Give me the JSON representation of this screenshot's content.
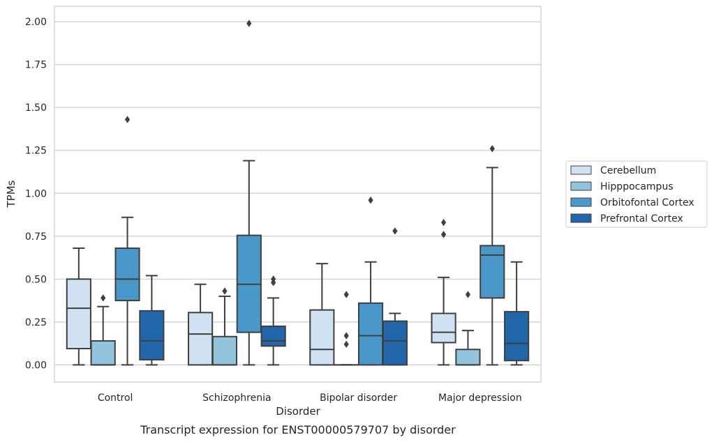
{
  "caption": "Transcript expression for ENST00000579707 by disorder",
  "chart_data": {
    "type": "box",
    "title": "",
    "xlabel": "Disorder",
    "ylabel": "TPMs",
    "ylim": [
      -0.1,
      2.09
    ],
    "yticks": [
      0.0,
      0.25,
      0.5,
      0.75,
      1.0,
      1.25,
      1.5,
      1.75,
      2.0
    ],
    "ytick_labels": [
      "0.00",
      "0.25",
      "0.50",
      "0.75",
      "1.00",
      "1.25",
      "1.50",
      "1.75",
      "2.00"
    ],
    "grid": "horizontal",
    "legend_position": "right",
    "categories": [
      "Control",
      "Schizophrenia",
      "Bipolar disorder",
      "Major depression"
    ],
    "series": [
      {
        "name": "Cerebellum",
        "color": "#cfe1f2",
        "boxes": [
          {
            "whislo": 0.0,
            "q1": 0.095,
            "med": 0.33,
            "q3": 0.5,
            "whishi": 0.68,
            "fliers": []
          },
          {
            "whislo": 0.0,
            "q1": 0.0,
            "med": 0.18,
            "q3": 0.305,
            "whishi": 0.47,
            "fliers": []
          },
          {
            "whislo": 0.0,
            "q1": 0.0,
            "med": 0.09,
            "q3": 0.32,
            "whishi": 0.59,
            "fliers": []
          },
          {
            "whislo": 0.0,
            "q1": 0.13,
            "med": 0.19,
            "q3": 0.3,
            "whishi": 0.51,
            "fliers": [
              0.76,
              0.83
            ]
          }
        ]
      },
      {
        "name": "Hipppocampus",
        "color": "#93c4de",
        "boxes": [
          {
            "whislo": 0.0,
            "q1": 0.0,
            "med": 0.0,
            "q3": 0.14,
            "whishi": 0.34,
            "fliers": [
              0.39
            ]
          },
          {
            "whislo": 0.0,
            "q1": 0.0,
            "med": 0.0,
            "q3": 0.165,
            "whishi": 0.4,
            "fliers": [
              0.43
            ]
          },
          {
            "whislo": 0.0,
            "q1": 0.0,
            "med": 0.0,
            "q3": 0.0,
            "whishi": 0.0,
            "fliers": [
              0.12,
              0.17,
              0.41
            ]
          },
          {
            "whislo": 0.0,
            "q1": 0.0,
            "med": 0.0,
            "q3": 0.09,
            "whishi": 0.2,
            "fliers": [
              0.41
            ]
          }
        ]
      },
      {
        "name": "Orbitofontal Cortex",
        "color": "#4a98c9",
        "boxes": [
          {
            "whislo": 0.0,
            "q1": 0.375,
            "med": 0.5,
            "q3": 0.68,
            "whishi": 0.86,
            "fliers": [
              1.43
            ]
          },
          {
            "whislo": 0.0,
            "q1": 0.19,
            "med": 0.47,
            "q3": 0.755,
            "whishi": 1.19,
            "fliers": [
              1.99
            ]
          },
          {
            "whislo": 0.0,
            "q1": 0.0,
            "med": 0.17,
            "q3": 0.36,
            "whishi": 0.6,
            "fliers": [
              0.96
            ]
          },
          {
            "whislo": 0.0,
            "q1": 0.39,
            "med": 0.64,
            "q3": 0.695,
            "whishi": 1.15,
            "fliers": [
              1.26
            ]
          }
        ]
      },
      {
        "name": "Prefrontal Cortex",
        "color": "#2165ab",
        "boxes": [
          {
            "whislo": 0.0,
            "q1": 0.03,
            "med": 0.14,
            "q3": 0.315,
            "whishi": 0.52,
            "fliers": []
          },
          {
            "whislo": 0.0,
            "q1": 0.11,
            "med": 0.14,
            "q3": 0.225,
            "whishi": 0.39,
            "fliers": [
              0.48,
              0.5
            ]
          },
          {
            "whislo": 0.0,
            "q1": 0.0,
            "med": 0.14,
            "q3": 0.255,
            "whishi": 0.3,
            "fliers": [
              0.78
            ]
          },
          {
            "whislo": 0.0,
            "q1": 0.025,
            "med": 0.125,
            "q3": 0.31,
            "whishi": 0.6,
            "fliers": []
          }
        ]
      }
    ]
  }
}
